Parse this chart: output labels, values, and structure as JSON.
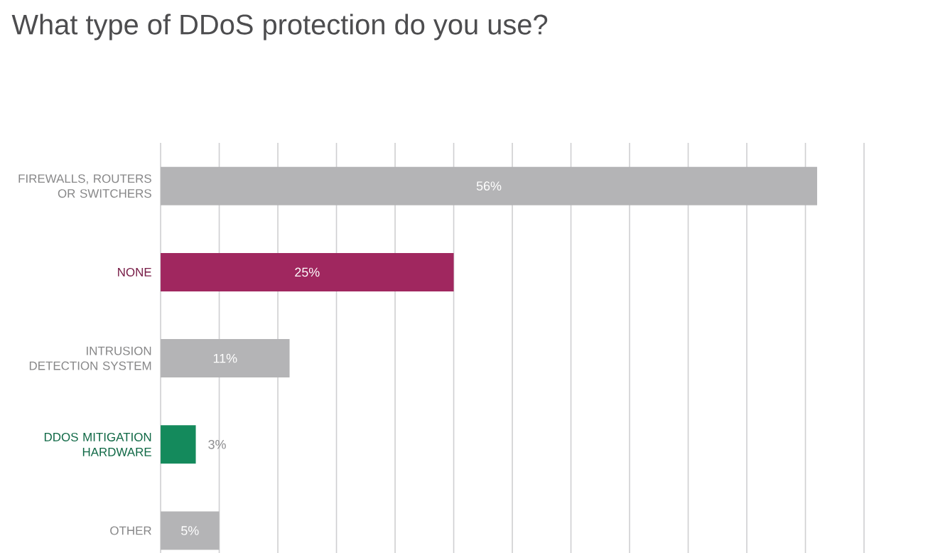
{
  "chart_data": {
    "type": "bar",
    "orientation": "horizontal",
    "title": "What type of DDoS protection do you use?",
    "categories": [
      "FIREWALLS, ROUTERS OR SWITCHERS",
      "NONE",
      "INTRUSION DETECTION SYSTEM",
      "DDOS MITIGATION HARDWARE",
      "OTHER"
    ],
    "values": [
      56,
      25,
      11,
      3,
      5
    ],
    "value_labels": [
      "56%",
      "25%",
      "11%",
      "3%",
      "5%"
    ],
    "colors": [
      "#b4b4b6",
      "#a0275f",
      "#b4b4b6",
      "#148a5c",
      "#b4b4b6"
    ],
    "xlim": [
      0,
      60
    ],
    "grid": "x",
    "tick_labels": "y"
  }
}
